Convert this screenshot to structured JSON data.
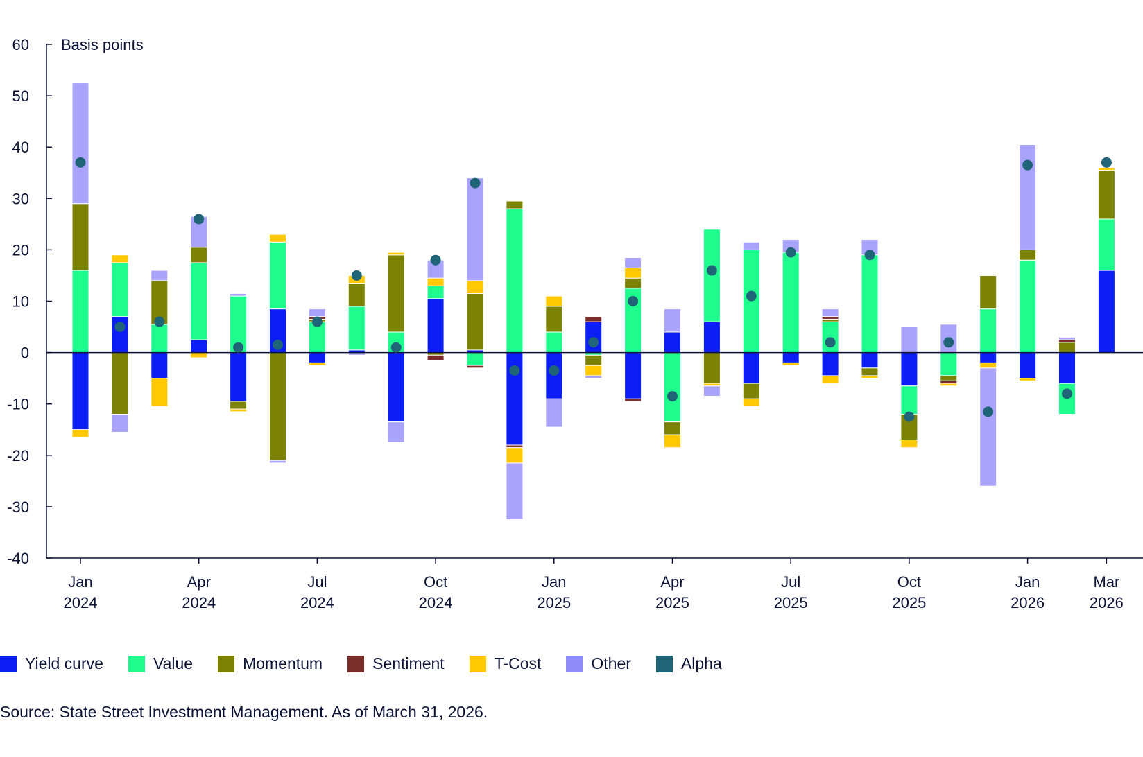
{
  "chart_data": {
    "type": "bar",
    "stacked": true,
    "ylabel": "Basis points",
    "ylim": [
      -40,
      60
    ],
    "yticks": [
      60,
      50,
      40,
      30,
      20,
      10,
      0,
      -10,
      -20,
      -30,
      -40
    ],
    "grid": false,
    "legend_position": "bottom",
    "categories": [
      "Jan 2024",
      "Feb 2024",
      "Mar 2024",
      "Apr 2024",
      "May 2024",
      "Jun 2024",
      "Jul 2024",
      "Aug 2024",
      "Sep 2024",
      "Oct 2024",
      "Nov 2024",
      "Dec 2024",
      "Jan 2025",
      "Feb 2025",
      "Mar 2025",
      "Apr 2025",
      "May 2025",
      "Jun 2025",
      "Jul 2025",
      "Aug 2025",
      "Sep 2025",
      "Oct 2025",
      "Nov 2025",
      "Dec 2025",
      "Jan 2026",
      "Feb 2026",
      "Mar 2026"
    ],
    "xtick_labels": [
      {
        "index": 0,
        "line1": "Jan",
        "line2": "2024"
      },
      {
        "index": 3,
        "line1": "Apr",
        "line2": "2024"
      },
      {
        "index": 6,
        "line1": "Jul",
        "line2": "2024"
      },
      {
        "index": 9,
        "line1": "Oct",
        "line2": "2024"
      },
      {
        "index": 12,
        "line1": "Jan",
        "line2": "2025"
      },
      {
        "index": 15,
        "line1": "Apr",
        "line2": "2025"
      },
      {
        "index": 18,
        "line1": "Jul",
        "line2": "2025"
      },
      {
        "index": 21,
        "line1": "Oct",
        "line2": "2025"
      },
      {
        "index": 24,
        "line1": "Jan",
        "line2": "2026"
      },
      {
        "index": 26,
        "line1": "Mar",
        "line2": "2026"
      }
    ],
    "series": [
      {
        "name": "Yield curve",
        "color": "#0a1ef5",
        "values": [
          -15,
          7,
          -5,
          2.5,
          -9.5,
          8.5,
          -2,
          0.5,
          -13.5,
          10.5,
          0.5,
          -18,
          -9,
          6,
          -9,
          4,
          6,
          -6,
          -2,
          -4.5,
          -3,
          -6.5,
          0,
          -2,
          -5,
          -6,
          16
        ]
      },
      {
        "name": "Value",
        "color": "#1ffc8e",
        "values": [
          16,
          10.5,
          5.5,
          15,
          11,
          13,
          6,
          8.5,
          4,
          2.5,
          -2.5,
          28,
          4,
          -0.5,
          12.5,
          -13.5,
          18,
          20,
          19.5,
          6,
          19,
          -5.5,
          -4.5,
          8.5,
          18,
          -6,
          10
        ]
      },
      {
        "name": "Momentum",
        "color": "#7b8204",
        "values": [
          13,
          -12,
          8.5,
          3,
          -1.5,
          -21,
          0.5,
          4.5,
          15,
          -0.5,
          11,
          1.5,
          5,
          -2,
          2,
          -2.5,
          -6,
          -3,
          0,
          0.5,
          -1.5,
          -5,
          -1,
          6.5,
          2,
          2,
          9.5
        ]
      },
      {
        "name": "Sentiment",
        "color": "#7a2e2a",
        "values": [
          0,
          0,
          0,
          0,
          0,
          0,
          0.5,
          0,
          0,
          -1,
          -0.5,
          -0.5,
          0,
          1,
          -0.5,
          0,
          0,
          0,
          0,
          0.5,
          0,
          0,
          -0.5,
          0,
          0,
          0.5,
          0
        ]
      },
      {
        "name": "T-Cost",
        "color": "#ffc800",
        "values": [
          -1.5,
          1.5,
          -5.5,
          -1,
          -0.5,
          1.5,
          -0.5,
          1.5,
          0.5,
          1.5,
          2.5,
          -3,
          2,
          -2,
          2,
          -2.5,
          -0.5,
          -1.5,
          -0.5,
          -1.5,
          -0.5,
          -1.5,
          -0.5,
          -1,
          -0.5,
          0,
          0.5
        ]
      },
      {
        "name": "Other",
        "color": "#a9a3fc",
        "values": [
          23.5,
          -3.5,
          2,
          6,
          0.5,
          -0.5,
          1.5,
          -0.5,
          -4,
          3.5,
          20,
          -11,
          -5.5,
          -0.5,
          2,
          4.5,
          -2,
          1.5,
          2.5,
          1.5,
          3,
          5,
          5.5,
          -23,
          20.5,
          0.5,
          0
        ]
      }
    ],
    "alpha": {
      "name": "Alpha",
      "color": "#206477",
      "values": [
        37,
        5,
        6,
        26,
        1,
        1.5,
        6,
        15,
        1,
        18,
        33,
        -3.5,
        -3.5,
        2,
        10,
        -8.5,
        16,
        11,
        19.5,
        2,
        19,
        -12.5,
        2,
        -11.5,
        36.5,
        -8,
        37
      ]
    }
  },
  "legend": [
    {
      "label": "Yield curve",
      "color": "#0a1ef5"
    },
    {
      "label": "Value",
      "color": "#1ffc8e"
    },
    {
      "label": "Momentum",
      "color": "#7b8204"
    },
    {
      "label": "Sentiment",
      "color": "#7a2e2a"
    },
    {
      "label": "T-Cost",
      "color": "#ffc800"
    },
    {
      "label": "Other",
      "color": "#8f8bfb"
    },
    {
      "label": "Alpha",
      "color": "#206477"
    }
  ],
  "source": "Source: State Street Investment Management. As of March 31, 2026."
}
